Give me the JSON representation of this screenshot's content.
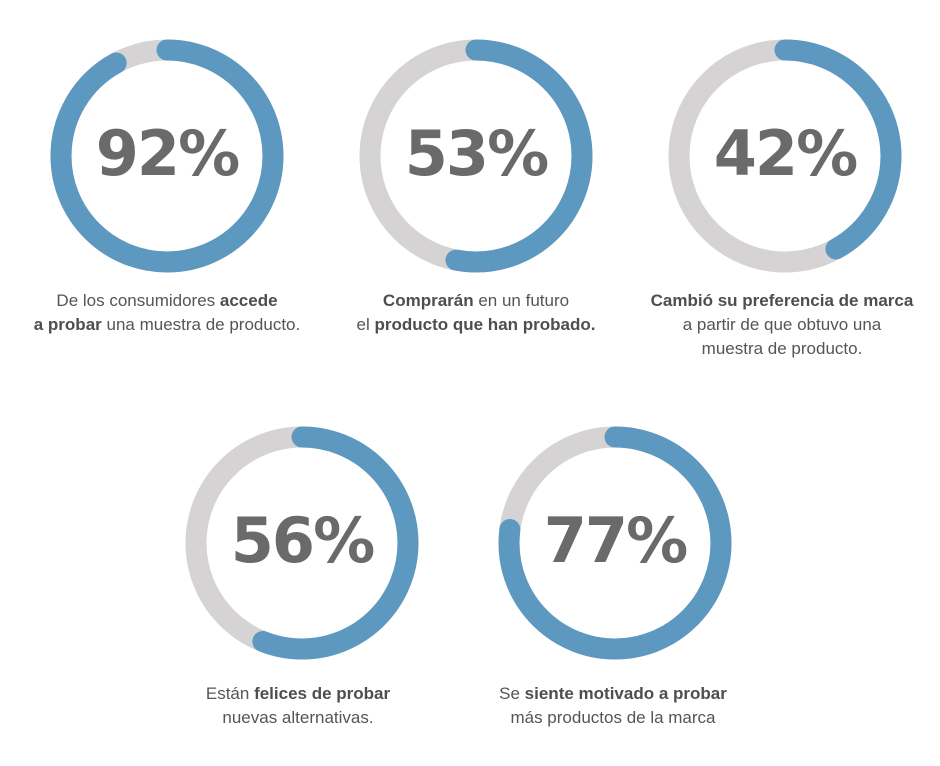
{
  "colors": {
    "track": "#d5d3d4",
    "progress": "#5c98bf",
    "number": "#6a6a6a",
    "text": "#555555"
  },
  "chart_data": [
    {
      "type": "pie",
      "value_label": "92%",
      "value": 92,
      "caption": [
        [
          {
            "text": "De los consumidores ",
            "bold": false
          },
          {
            "text": "accede",
            "bold": true
          }
        ],
        [
          {
            "text": "a probar",
            "bold": true
          },
          {
            "text": " una muestra de producto.",
            "bold": false
          }
        ]
      ]
    },
    {
      "type": "pie",
      "value_label": "53%",
      "value": 53,
      "caption": [
        [
          {
            "text": "Comprarán",
            "bold": true
          },
          {
            "text": " en un futuro",
            "bold": false
          }
        ],
        [
          {
            "text": "el ",
            "bold": false
          },
          {
            "text": "producto que han probado.",
            "bold": true
          }
        ]
      ]
    },
    {
      "type": "pie",
      "value_label": "42%",
      "value": 42,
      "caption": [
        [
          {
            "text": "Cambió su preferencia de marca",
            "bold": true
          }
        ],
        [
          {
            "text": "a partir de que obtuvo una",
            "bold": false
          }
        ],
        [
          {
            "text": "muestra de producto.",
            "bold": false
          }
        ]
      ]
    },
    {
      "type": "pie",
      "value_label": "56%",
      "value": 56,
      "caption": [
        [
          {
            "text": "Están ",
            "bold": false
          },
          {
            "text": "felices de probar",
            "bold": true
          }
        ],
        [
          {
            "text": "nuevas alternativas.",
            "bold": false
          }
        ]
      ]
    },
    {
      "type": "pie",
      "value_label": "77%",
      "value": 77,
      "caption": [
        [
          {
            "text": "Se ",
            "bold": false
          },
          {
            "text": "siente motivado a probar",
            "bold": true
          }
        ],
        [
          {
            "text": "más productos de la marca",
            "bold": false
          }
        ]
      ]
    }
  ]
}
